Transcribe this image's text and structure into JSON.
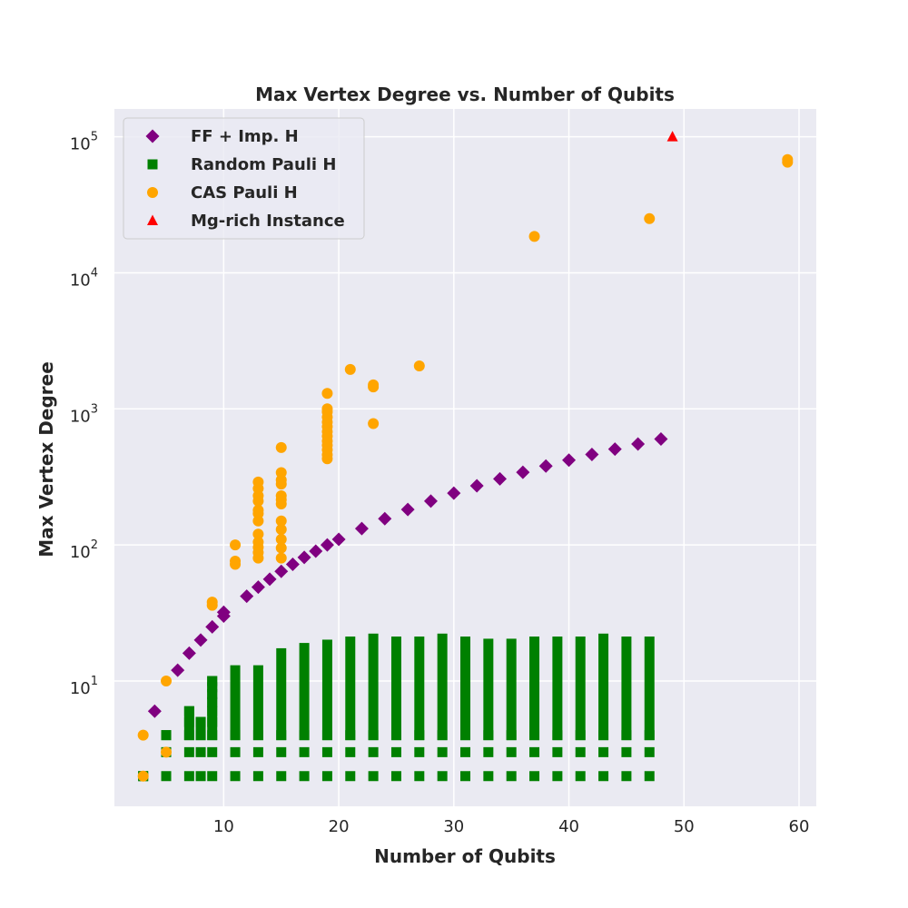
{
  "chart_data": {
    "type": "scatter",
    "title": "Max Vertex Degree vs. Number of Qubits",
    "xlabel": "Number of Qubits",
    "ylabel": "Max Vertex Degree",
    "xlim": [
      0.5,
      61.5
    ],
    "ylim": [
      1.2,
      160000
    ],
    "yscale": "log",
    "grid": true,
    "legend_position": "top-left",
    "xticks": [
      10,
      20,
      30,
      40,
      50,
      60
    ],
    "yticks": [
      {
        "value": 10,
        "base": "10",
        "exp": "1"
      },
      {
        "value": 100,
        "base": "10",
        "exp": "2"
      },
      {
        "value": 1000,
        "base": "10",
        "exp": "3"
      },
      {
        "value": 10000,
        "base": "10",
        "exp": "4"
      },
      {
        "value": 100000,
        "base": "10",
        "exp": "5"
      }
    ],
    "series": [
      {
        "name": "FF + Imp. H",
        "marker": "diamond",
        "color": "#800080",
        "points": [
          [
            4,
            6
          ],
          [
            6,
            12
          ],
          [
            7,
            16
          ],
          [
            8,
            20
          ],
          [
            9,
            25
          ],
          [
            10,
            30
          ],
          [
            10,
            32
          ],
          [
            12,
            42
          ],
          [
            13,
            49
          ],
          [
            14,
            56
          ],
          [
            15,
            64
          ],
          [
            16,
            72
          ],
          [
            17,
            81
          ],
          [
            18,
            90
          ],
          [
            19,
            100
          ],
          [
            20,
            110
          ],
          [
            22,
            132
          ],
          [
            24,
            156
          ],
          [
            26,
            182
          ],
          [
            28,
            210
          ],
          [
            30,
            240
          ],
          [
            32,
            272
          ],
          [
            34,
            306
          ],
          [
            36,
            342
          ],
          [
            38,
            380
          ],
          [
            40,
            420
          ],
          [
            42,
            462
          ],
          [
            44,
            506
          ],
          [
            46,
            552
          ],
          [
            48,
            600
          ]
        ]
      },
      {
        "name": "Random Pauli H",
        "marker": "square",
        "color": "#008000",
        "columns": [
          {
            "x": 3,
            "min": 2,
            "max": 2,
            "levels": [
              2
            ]
          },
          {
            "x": 5,
            "min": 4,
            "max": 4,
            "levels": [
              2,
              3,
              4
            ]
          },
          {
            "x": 7,
            "min": 4,
            "max": 6,
            "levels": [
              2,
              3,
              4,
              5,
              6
            ]
          },
          {
            "x": 8,
            "min": 4,
            "max": 5,
            "levels": [
              2,
              3,
              4,
              5
            ]
          },
          {
            "x": 9,
            "min": 4,
            "max": 10,
            "levels": [
              2,
              3,
              4,
              5,
              6,
              7,
              8,
              9,
              10
            ]
          },
          {
            "x": 11,
            "min": 4,
            "max": 12,
            "levels": [
              2,
              3,
              4
            ]
          },
          {
            "x": 13,
            "min": 4,
            "max": 12,
            "levels": [
              2,
              3,
              4
            ]
          },
          {
            "x": 15,
            "min": 4,
            "max": 16,
            "levels": [
              2,
              3,
              4
            ]
          },
          {
            "x": 17,
            "min": 4,
            "max": 17.5,
            "levels": [
              2,
              3,
              4
            ]
          },
          {
            "x": 19,
            "min": 4,
            "max": 18.5,
            "levels": [
              2,
              3,
              4
            ]
          },
          {
            "x": 21,
            "min": 4,
            "max": 19.5,
            "levels": [
              2,
              3,
              4
            ]
          },
          {
            "x": 23,
            "min": 4,
            "max": 20.5,
            "levels": [
              2,
              3,
              4
            ]
          },
          {
            "x": 25,
            "min": 4,
            "max": 19.5,
            "levels": [
              2,
              3,
              4
            ]
          },
          {
            "x": 27,
            "min": 4,
            "max": 19.5,
            "levels": [
              2,
              3,
              4
            ]
          },
          {
            "x": 29,
            "min": 4,
            "max": 20.5,
            "levels": [
              2,
              3,
              4
            ]
          },
          {
            "x": 31,
            "min": 4,
            "max": 19.5,
            "levels": [
              2,
              3,
              4
            ]
          },
          {
            "x": 33,
            "min": 4,
            "max": 18.8,
            "levels": [
              2,
              3,
              4
            ]
          },
          {
            "x": 35,
            "min": 4,
            "max": 18.8,
            "levels": [
              2,
              3,
              4
            ]
          },
          {
            "x": 37,
            "min": 4,
            "max": 19.5,
            "levels": [
              2,
              3,
              4
            ]
          },
          {
            "x": 39,
            "min": 4,
            "max": 19.5,
            "levels": [
              2,
              3,
              4
            ]
          },
          {
            "x": 41,
            "min": 4,
            "max": 19.5,
            "levels": [
              2,
              3,
              4
            ]
          },
          {
            "x": 43,
            "min": 4,
            "max": 20.5,
            "levels": [
              2,
              3,
              4
            ]
          },
          {
            "x": 45,
            "min": 4,
            "max": 19.5,
            "levels": [
              2,
              3,
              4
            ]
          },
          {
            "x": 47,
            "min": 4,
            "max": 19.5,
            "levels": [
              2,
              3,
              4
            ]
          }
        ]
      },
      {
        "name": "CAS Pauli H",
        "marker": "circle",
        "color": "#FFA500",
        "points": [
          [
            3,
            2
          ],
          [
            3,
            4
          ],
          [
            5,
            3
          ],
          [
            5,
            10
          ],
          [
            9,
            36
          ],
          [
            9,
            38
          ],
          [
            11,
            72
          ],
          [
            11,
            76
          ],
          [
            11,
            100
          ],
          [
            13,
            80
          ],
          [
            13,
            88
          ],
          [
            13,
            96
          ],
          [
            13,
            105
          ],
          [
            13,
            120
          ],
          [
            13,
            150
          ],
          [
            13,
            170
          ],
          [
            13,
            180
          ],
          [
            13,
            210
          ],
          [
            13,
            230
          ],
          [
            13,
            260
          ],
          [
            13,
            290
          ],
          [
            15,
            80
          ],
          [
            15,
            95
          ],
          [
            15,
            110
          ],
          [
            15,
            130
          ],
          [
            15,
            150
          ],
          [
            15,
            200
          ],
          [
            15,
            215
          ],
          [
            15,
            230
          ],
          [
            15,
            280
          ],
          [
            15,
            300
          ],
          [
            15,
            340
          ],
          [
            15,
            520
          ],
          [
            19,
            430
          ],
          [
            19,
            460
          ],
          [
            19,
            500
          ],
          [
            19,
            540
          ],
          [
            19,
            580
          ],
          [
            19,
            630
          ],
          [
            19,
            680
          ],
          [
            19,
            740
          ],
          [
            19,
            800
          ],
          [
            19,
            870
          ],
          [
            19,
            950
          ],
          [
            19,
            1000
          ],
          [
            19,
            1300
          ],
          [
            21,
            1950
          ],
          [
            23,
            780
          ],
          [
            23,
            1450
          ],
          [
            23,
            1500
          ],
          [
            27,
            2070
          ],
          [
            37,
            18500
          ],
          [
            47,
            25000
          ],
          [
            59,
            65000
          ],
          [
            59,
            68000
          ]
        ]
      },
      {
        "name": "Mg-rich Instance",
        "marker": "triangle",
        "color": "#FF0000",
        "points": [
          [
            49,
            100000
          ]
        ]
      }
    ]
  }
}
